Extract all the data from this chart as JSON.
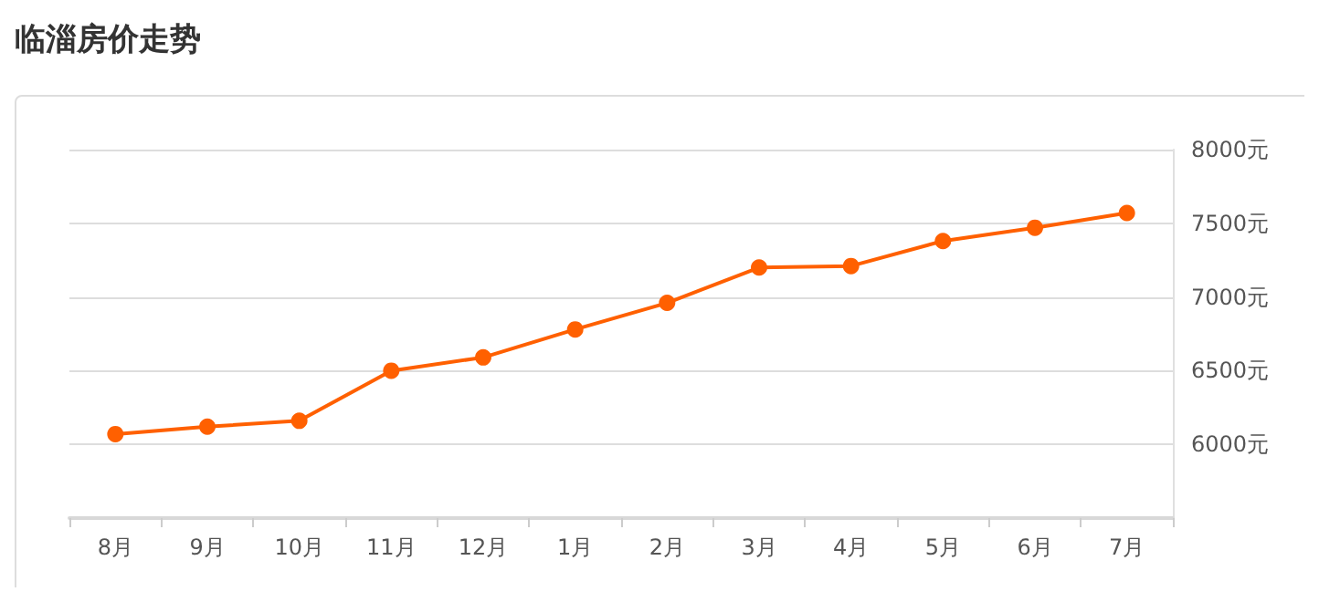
{
  "chart_data": {
    "type": "line",
    "title": "临淄房价走势",
    "categories": [
      "8月",
      "9月",
      "10月",
      "11月",
      "12月",
      "1月",
      "2月",
      "3月",
      "4月",
      "5月",
      "6月",
      "7月"
    ],
    "series": [
      {
        "color": "#ff6000",
        "values": [
          6070,
          6120,
          6160,
          6500,
          6590,
          6780,
          6960,
          7200,
          7210,
          7380,
          7470,
          7570
        ]
      }
    ],
    "ylim": [
      5500,
      8000
    ],
    "yticks": [
      {
        "value": 5500,
        "label": null
      },
      {
        "value": 6000,
        "label": "6000元"
      },
      {
        "value": 6500,
        "label": "6500元"
      },
      {
        "value": 7000,
        "label": "7000元"
      },
      {
        "value": 7500,
        "label": "7500元"
      },
      {
        "value": 8000,
        "label": "8000元"
      }
    ],
    "grid": "y",
    "marker": "circle",
    "line_style": "solid"
  }
}
